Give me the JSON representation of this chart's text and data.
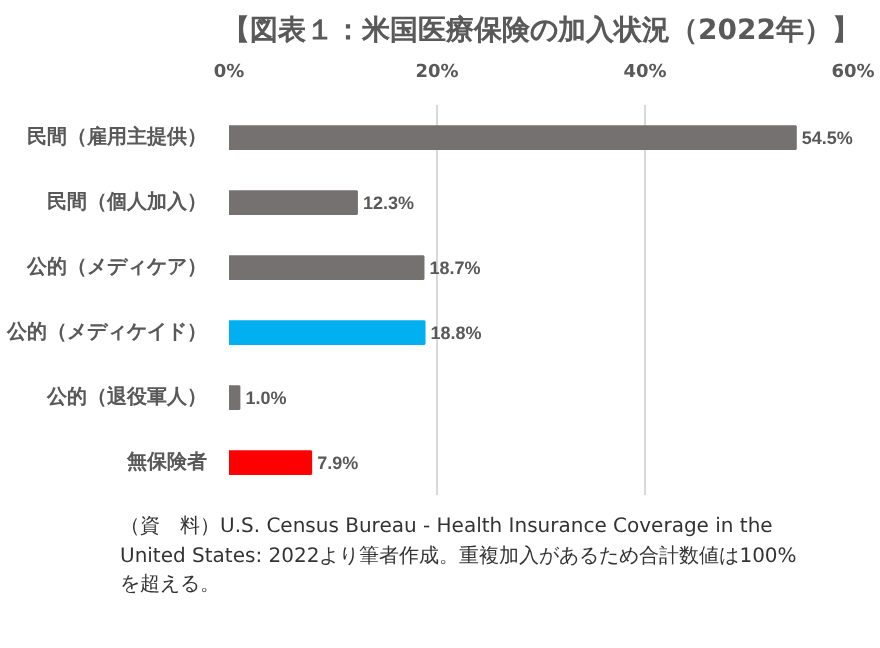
{
  "chart_data": {
    "type": "bar",
    "orientation": "horizontal",
    "title": "【図表１：米国医療保険の加入状況（2022年）】",
    "categories": [
      "民間（雇用主提供）",
      "民間（個人加入）",
      "公的（メディケア）",
      "公的（メディケイド）",
      "公的（退役軍人）",
      "無保険者"
    ],
    "values": [
      54.5,
      12.3,
      18.7,
      18.8,
      1.0,
      7.9
    ],
    "colors": [
      "#757171",
      "#757171",
      "#757171",
      "#00b0f0",
      "#757171",
      "#ff0000"
    ],
    "value_labels": [
      "54.5%",
      "12.3%",
      "18.7%",
      "18.8%",
      "1.0%",
      "7.9%"
    ],
    "xlim": [
      0,
      60
    ],
    "xticks": [
      {
        "value": 0,
        "label": "0%"
      },
      {
        "value": 20,
        "label": "20%"
      },
      {
        "value": 40,
        "label": "40%"
      },
      {
        "value": 60,
        "label": "60%"
      }
    ],
    "grid": "x",
    "annotations": [
      "（資　料）U.S. Census Bureau - Health Insurance Coverage in the United States: 2022より筆者作成。重複加入があるため合計数値は100%を超える。"
    ]
  }
}
